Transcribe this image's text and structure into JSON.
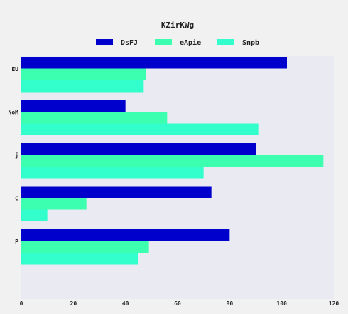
{
  "chart_data": {
    "type": "bar",
    "orientation": "horizontal",
    "title": "KZirKWg",
    "categories": [
      "EU",
      "NoM",
      "j",
      "C",
      "P"
    ],
    "series": [
      {
        "name": "DsFJ",
        "color": "#0000cc",
        "values": [
          102,
          40,
          90,
          73,
          80
        ]
      },
      {
        "name": "eApie",
        "color": "#3dffb0",
        "values": [
          48,
          56,
          116,
          25,
          49
        ]
      },
      {
        "name": "Snpb",
        "color": "#33ffcc",
        "values": [
          47,
          91,
          70,
          10,
          45
        ]
      }
    ],
    "xlim": [
      0,
      120
    ],
    "xticks": [
      "0",
      "20",
      "40",
      "60",
      "80",
      "100",
      "120"
    ],
    "legend_position": "top",
    "plot_background": "#eaeaf2",
    "grid": false
  }
}
